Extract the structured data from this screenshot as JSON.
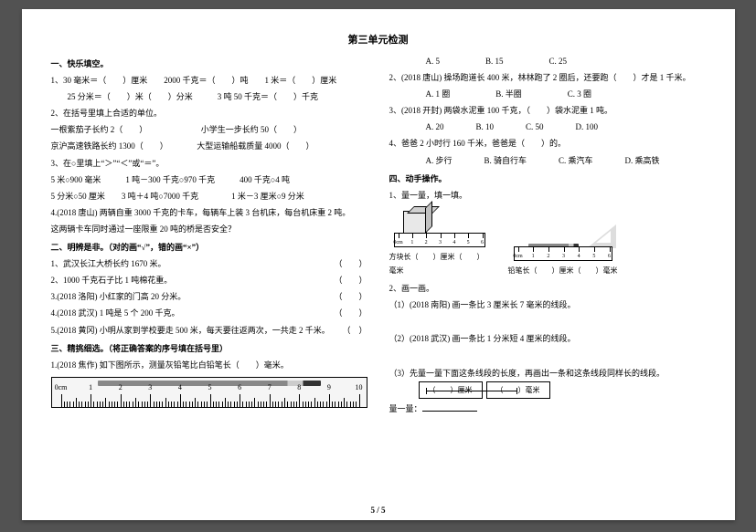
{
  "title": "第三单元检测",
  "left": {
    "sec1": "一、快乐填空。",
    "q1": "1、30 毫米＝（　　）厘米　　2000 千克＝（　　）吨　　1 米＝（　　）厘米",
    "q1b": "　　25 分米＝（　　）米（　　）分米　　　3 吨 50 千克＝（　　）千克",
    "q2": "2、在括号里填上合适的单位。",
    "q2a": "一根紫茄子长约 2（　　）　　　　　　　小学生一步长约 50（　　）",
    "q2b": "京沪高速铁路长约 1300（　　）　　　　大型运输船载质量 4000（　　）",
    "q3": "3、在○里填上“＞”“＜”或“＝”。",
    "q3a": "5 米○900 毫米　　　1 吨－300 千克○970 千克　　　400 千克○4 吨",
    "q3b": "5 分米○50 厘米　　3 吨＋4 吨○7000 千克　　　　1 米－3 厘米○9 分米",
    "q4": "4.(2018 唐山) 两辆自重 3000 千克的卡车，每辆车上装 3 台机床，每台机床重 2 吨。",
    "q4b": "这两辆卡车同时通过一座限重 20 吨的桥是否安全？",
    "sec2": "二、明辨是非。（对的画“√”，错的画“×”）",
    "t1": "1、武汉长江大桥长约 1670 米。",
    "t1r": "（　　）",
    "t2": "2、1000 千克石子比 1 吨棉花重。",
    "t2r": "（　　）",
    "t3": "3.(2018 洛阳) 小红家的门高 20 分米。",
    "t3r": "（　　）",
    "t4": "4.(2018 武汉) 1 吨是 5 个 200 千克。",
    "t4r": "（　　）",
    "t5": "5.(2018 黄冈) 小明从家到学校要走 500 米，每天要往返两次，一共走 2 千米。",
    "t5r": "（　）",
    "sec3": "三、精挑细选。（将正确答案的序号填在括号里）",
    "c1": "1.(2018 焦作) 如下图所示，测量灰铅笔比白铅笔长（　　）毫米。",
    "ruler": {
      "min": 0,
      "max": 10,
      "unit": "0cm",
      "step": 1
    }
  },
  "right": {
    "o1": {
      "A": "A. 5",
      "B": "B. 15",
      "C": "C. 25"
    },
    "c2": "2、(2018 唐山) 操场跑道长 400 米，林林跑了 2 圈后，还要跑（　　）才是 1 千米。",
    "o2": {
      "A": "A. 1 圈",
      "B": "B. 半圈",
      "C": "C. 3 圈"
    },
    "c3": "3、(2018 开封) 两袋水泥重 100 千克，（　　）袋水泥重 1 吨。",
    "o3": {
      "A": "A. 20",
      "B": "B. 10",
      "C": "C. 50",
      "D": "D. 100"
    },
    "c4": "4、爸爸 2 小时行 160 千米，爸爸是（　　）的。",
    "o4": {
      "A": "A. 步行",
      "B": "B. 骑自行车",
      "C": "C. 乘汽车",
      "D": "D. 乘高铁"
    },
    "sec4": "四、动手操作。",
    "m1": "1、量一量，填一填。",
    "fig1": {
      "label": "方块长（　　）厘米（　　）毫米",
      "ruler": {
        "unit": "0cm",
        "max": 6
      }
    },
    "fig2": {
      "label": "铅笔长（　　）厘米（　　）毫米",
      "ruler": {
        "unit": "0cm",
        "max": 6
      }
    },
    "m2": "2、画一画。",
    "d1": "（1）(2018 南阳) 画一条比 3 厘米长 7 毫米的线段。",
    "d2": "（2）(2018 武汉) 画一条比 1 分米短 4 厘米的线段。",
    "d3": "（3）先量一量下面这条线段的长度，再画出一条和这条线段同样长的线段。",
    "d3box1": "（　　）厘米",
    "d3box2": "（　　）毫米",
    "d3b": "量一量："
  },
  "pagenum": "5 / 5"
}
